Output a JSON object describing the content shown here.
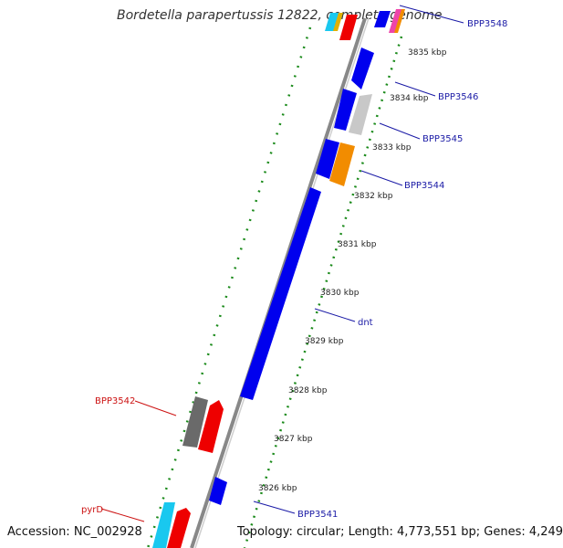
{
  "title": "Bordetella parapertussis 12822, complete genome",
  "footer": {
    "accession": "Accession: NC_002928",
    "topology": "Topology: circular; Length: 4,773,551 bp; Genes: 4,249"
  },
  "ticks": [
    "3835 kbp",
    "3834 kbp",
    "3833 kbp",
    "3832 kbp",
    "3831 kbp",
    "3830 kbp",
    "3829 kbp",
    "3828 kbp",
    "3827 kbp",
    "3826 kbp"
  ],
  "gene_labels": [
    {
      "name": "BPP3548",
      "color": "#1a1aa6"
    },
    {
      "name": "BPP3546",
      "color": "#1a1aa6"
    },
    {
      "name": "BPP3545",
      "color": "#1a1aa6"
    },
    {
      "name": "BPP3544",
      "color": "#1a1aa6"
    },
    {
      "name": "dnt",
      "color": "#1a1aa6"
    },
    {
      "name": "BPP3541",
      "color": "#1a1aa6"
    },
    {
      "name": "BPP3542",
      "color": "#cc1111"
    },
    {
      "name": "pyrD",
      "color": "#cc1111"
    }
  ],
  "colors": {
    "blue": "#0000ee",
    "red": "#ee0000",
    "gray": "#6a6a6a",
    "lightgray": "#c8c8c8",
    "orange": "#f28c00",
    "cyan": "#19c8ef",
    "green": "#1a8a1a",
    "backbone": "#888888"
  }
}
